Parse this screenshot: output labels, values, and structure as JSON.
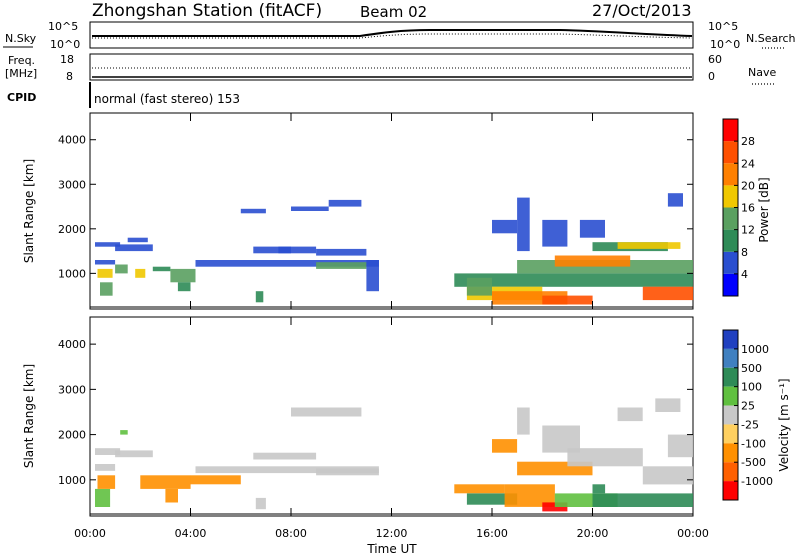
{
  "header": {
    "title": "Zhongshan Station (fitACF)",
    "beam": "Beam 02",
    "date": "27/Oct/2013"
  },
  "top_panel": {
    "left_label": "N.Sky",
    "left_ticks": [
      "10^5",
      "10^0"
    ],
    "right_label": "N.Search",
    "right_ticks": [
      "10^5",
      "10^0"
    ]
  },
  "freq_panel": {
    "label_line1": "Freq.",
    "label_line2": "[MHz]",
    "left_ticks": [
      "18",
      "8"
    ],
    "right_label": "Nave",
    "right_ticks": [
      "60",
      "0"
    ]
  },
  "cpid": {
    "label": "CPID",
    "text": "normal (fast stereo) 153"
  },
  "x_axis": {
    "label": "Time UT",
    "ticks": [
      "00:00",
      "04:00",
      "08:00",
      "12:00",
      "16:00",
      "20:00",
      "00:00"
    ]
  },
  "power_colorbar": {
    "label": "Power [dB]",
    "ticks": [
      "4",
      "8",
      "12",
      "16",
      "20",
      "24",
      "28"
    ],
    "colors": [
      "#0000ff",
      "#2a4fd0",
      "#2e8b57",
      "#5aa060",
      "#f0c800",
      "#ff8000",
      "#ff5000",
      "#ff0000"
    ]
  },
  "velocity_colorbar": {
    "label": "Velocity [m s⁻¹]",
    "ticks": [
      "1000",
      "500",
      "100",
      "25",
      "-25",
      "-100",
      "-500",
      "-1000"
    ],
    "colors": [
      "#2040c0",
      "#4080c0",
      "#2e8b57",
      "#60c040",
      "#c8c8c8",
      "#ffd060",
      "#ff9000",
      "#ff6000",
      "#ff0000"
    ]
  },
  "chart_data": [
    {
      "type": "heatmap",
      "name": "power",
      "ylabel": "Slant Range [km]",
      "yticks": [
        1000,
        2000,
        3000,
        4000
      ],
      "ylim": [
        200,
        4600
      ],
      "xlim_hours": [
        0,
        24
      ],
      "cells": [
        [
          0.2,
          1.0,
          1200,
          1300,
          6
        ],
        [
          0.2,
          1.2,
          1600,
          1700,
          7
        ],
        [
          0.3,
          0.9,
          900,
          1100,
          18
        ],
        [
          0.4,
          0.9,
          500,
          800,
          14
        ],
        [
          1.0,
          2.5,
          1500,
          1650,
          6
        ],
        [
          1.5,
          2.3,
          1700,
          1800,
          5
        ],
        [
          1.0,
          1.5,
          1000,
          1200,
          12
        ],
        [
          1.8,
          2.2,
          900,
          1100,
          16
        ],
        [
          2.5,
          3.2,
          1050,
          1150,
          8
        ],
        [
          3.2,
          4.2,
          800,
          1100,
          14
        ],
        [
          3.5,
          4.0,
          600,
          800,
          10
        ],
        [
          4.2,
          11.5,
          1150,
          1300,
          7
        ],
        [
          6.5,
          8.0,
          1450,
          1600,
          6
        ],
        [
          7.5,
          9.0,
          1450,
          1600,
          6
        ],
        [
          6.6,
          6.9,
          350,
          600,
          10
        ],
        [
          9.0,
          11.0,
          1400,
          1550,
          6
        ],
        [
          9.0,
          11.0,
          1100,
          1250,
          13
        ],
        [
          8.0,
          9.5,
          2400,
          2500,
          6
        ],
        [
          9.5,
          10.8,
          2500,
          2650,
          6
        ],
        [
          6.0,
          7.0,
          2350,
          2450,
          6
        ],
        [
          11.0,
          11.5,
          600,
          1300,
          6
        ],
        [
          14.5,
          24.0,
          700,
          1000,
          10
        ],
        [
          15.0,
          18.0,
          400,
          700,
          16
        ],
        [
          16.0,
          19.0,
          300,
          600,
          20
        ],
        [
          18.0,
          20.0,
          300,
          500,
          27
        ],
        [
          17.0,
          24.0,
          1000,
          1300,
          14
        ],
        [
          18.5,
          21.5,
          1150,
          1400,
          20
        ],
        [
          20.0,
          23.0,
          1500,
          1700,
          10
        ],
        [
          21.0,
          23.5,
          1550,
          1700,
          16
        ],
        [
          18.0,
          19.0,
          1600,
          2200,
          7
        ],
        [
          19.5,
          20.5,
          1800,
          2200,
          7
        ],
        [
          17.0,
          17.5,
          1500,
          2700,
          7
        ],
        [
          22.0,
          24.0,
          400,
          700,
          24
        ],
        [
          16.0,
          17.0,
          1900,
          2200,
          6
        ],
        [
          23.0,
          23.6,
          2500,
          2800,
          6
        ],
        [
          15.0,
          16.0,
          500,
          900,
          13
        ]
      ]
    },
    {
      "type": "heatmap",
      "name": "velocity",
      "ylabel": "Slant Range [km]",
      "yticks": [
        1000,
        2000,
        3000,
        4000
      ],
      "ylim": [
        200,
        4600
      ],
      "xlim_hours": [
        0,
        24
      ],
      "cells": [
        [
          0.2,
          1.0,
          1200,
          1350,
          0
        ],
        [
          0.2,
          1.2,
          1550,
          1700,
          0
        ],
        [
          0.2,
          0.8,
          400,
          800,
          80
        ],
        [
          0.3,
          1.0,
          800,
          1100,
          -200
        ],
        [
          1.0,
          2.5,
          1500,
          1650,
          0
        ],
        [
          2.0,
          4.0,
          800,
          1100,
          -150
        ],
        [
          3.0,
          3.5,
          500,
          800,
          -300
        ],
        [
          4.0,
          6.0,
          900,
          1100,
          -120
        ],
        [
          4.2,
          11.5,
          1150,
          1300,
          0
        ],
        [
          6.5,
          9.0,
          1450,
          1600,
          0
        ],
        [
          9.0,
          11.5,
          1100,
          1250,
          0
        ],
        [
          6.6,
          7.0,
          350,
          600,
          0
        ],
        [
          8.0,
          10.8,
          2400,
          2600,
          0
        ],
        [
          1.2,
          1.5,
          2000,
          2100,
          60
        ],
        [
          14.5,
          16.5,
          700,
          900,
          -300
        ],
        [
          15.0,
          17.0,
          450,
          700,
          300
        ],
        [
          16.5,
          18.5,
          400,
          900,
          -150
        ],
        [
          18.0,
          19.0,
          300,
          500,
          -800
        ],
        [
          18.5,
          21.0,
          400,
          700,
          80
        ],
        [
          20.0,
          24.0,
          400,
          700,
          150
        ],
        [
          22.0,
          24.0,
          900,
          1300,
          0
        ],
        [
          17.0,
          20.0,
          1100,
          1400,
          -120
        ],
        [
          19.0,
          22.0,
          1300,
          1700,
          0
        ],
        [
          23.0,
          24.0,
          1500,
          2000,
          0
        ],
        [
          18.0,
          19.5,
          1600,
          2200,
          0
        ],
        [
          21.0,
          22.0,
          2300,
          2600,
          0
        ],
        [
          16.0,
          17.0,
          1600,
          1900,
          -300
        ],
        [
          22.5,
          23.5,
          2500,
          2800,
          0
        ],
        [
          17.0,
          17.5,
          2000,
          2600,
          0
        ],
        [
          20.0,
          20.5,
          700,
          900,
          300
        ]
      ]
    }
  ]
}
